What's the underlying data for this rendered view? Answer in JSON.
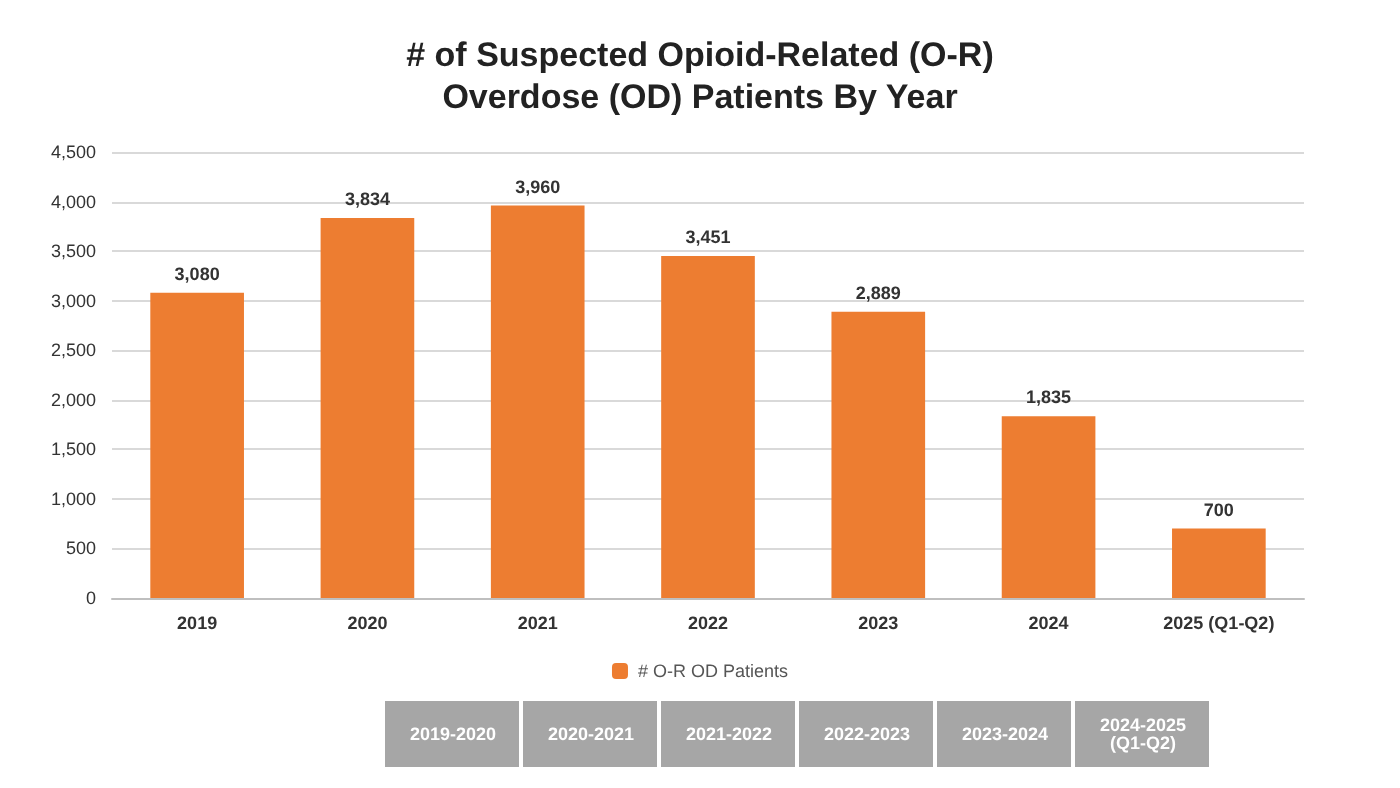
{
  "chart_data": {
    "type": "bar",
    "title": "# of Suspected Opioid-Related (O-R)\nOverdose (OD) Patients By Year",
    "categories": [
      "2019",
      "2020",
      "2021",
      "2022",
      "2023",
      "2024",
      "2025 (Q1-Q2)"
    ],
    "series": [
      {
        "name": "# O-R OD Patients",
        "color": "#ed7d31",
        "values": [
          3080,
          3834,
          3960,
          3451,
          2889,
          1835,
          700
        ],
        "value_labels": [
          "3,080",
          "3,834",
          "3,960",
          "3,451",
          "2,889",
          "1,835",
          "700"
        ]
      }
    ],
    "ylim": [
      0,
      4500
    ],
    "yticks": [
      {
        "value": 0,
        "label": "0"
      },
      {
        "value": 500,
        "label": "500"
      },
      {
        "value": 1000,
        "label": "1,000"
      },
      {
        "value": 1500,
        "label": "1,500"
      },
      {
        "value": 2000,
        "label": "2,000"
      },
      {
        "value": 2500,
        "label": "2,500"
      },
      {
        "value": 3000,
        "label": "3,000"
      },
      {
        "value": 3500,
        "label": "3,500"
      },
      {
        "value": 4000,
        "label": "4,000"
      },
      {
        "value": 4500,
        "label": "4,500"
      }
    ],
    "grid": "y",
    "legend": "bottom",
    "annotations": [
      "2019-2020",
      "2020-2021",
      "2021-2022",
      "2022-2023",
      "2023-2024",
      "2024-2025\n(Q1-Q2)"
    ]
  }
}
